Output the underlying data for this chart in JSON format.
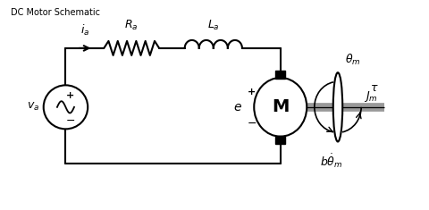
{
  "title": "DC Motor Schematic",
  "bg_color": "#ffffff",
  "line_color": "#000000",
  "title_fontsize": 7,
  "label_fontsize": 9,
  "fig_width": 4.8,
  "fig_height": 2.35,
  "dpi": 100,
  "xlim": [
    0,
    10
  ],
  "ylim": [
    0,
    4.9
  ]
}
